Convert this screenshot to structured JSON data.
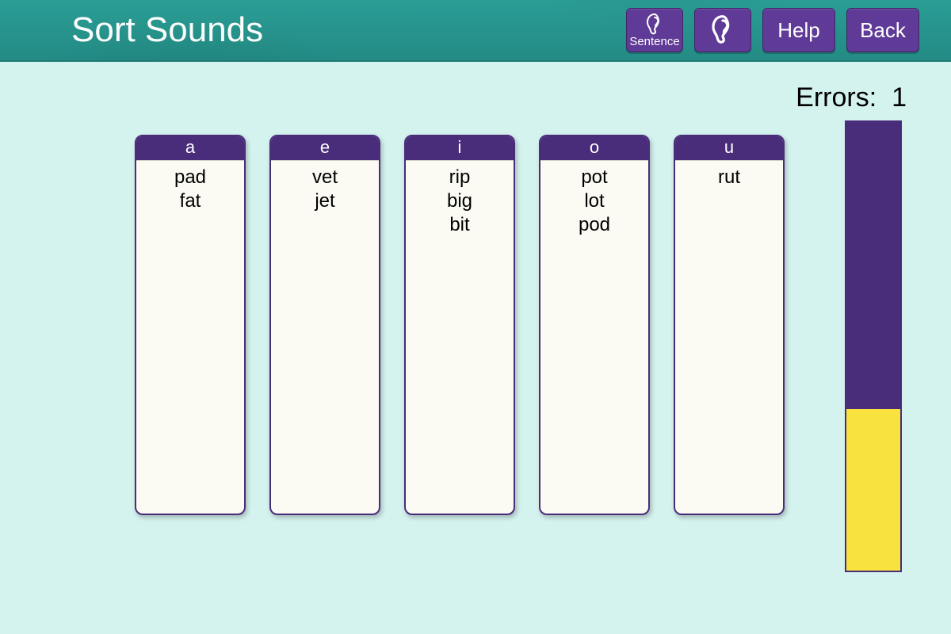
{
  "header": {
    "title": "Sort Sounds",
    "buttons": {
      "sentence": {
        "label": "Sentence"
      },
      "listen": {
        "label": ""
      },
      "help": {
        "label": "Help"
      },
      "back": {
        "label": "Back"
      }
    }
  },
  "errors": {
    "label": "Errors:",
    "count": "1"
  },
  "columns": [
    {
      "letter": "a",
      "words": [
        "pad",
        "fat"
      ]
    },
    {
      "letter": "e",
      "words": [
        "vet",
        "jet"
      ]
    },
    {
      "letter": "i",
      "words": [
        "rip",
        "big",
        "bit"
      ]
    },
    {
      "letter": "o",
      "words": [
        "pot",
        "lot",
        "pod"
      ]
    },
    {
      "letter": "u",
      "words": [
        "rut"
      ]
    }
  ],
  "progress": {
    "fill_percent": 36,
    "fill_color": "#f7e23e",
    "track_color": "#4a2d7a"
  },
  "colors": {
    "header_bg": "#2a9d95",
    "page_bg": "#d4f2ee",
    "button_bg": "#5f3a96",
    "column_border": "#4a2d7a",
    "column_bg": "#fbfbf3"
  }
}
